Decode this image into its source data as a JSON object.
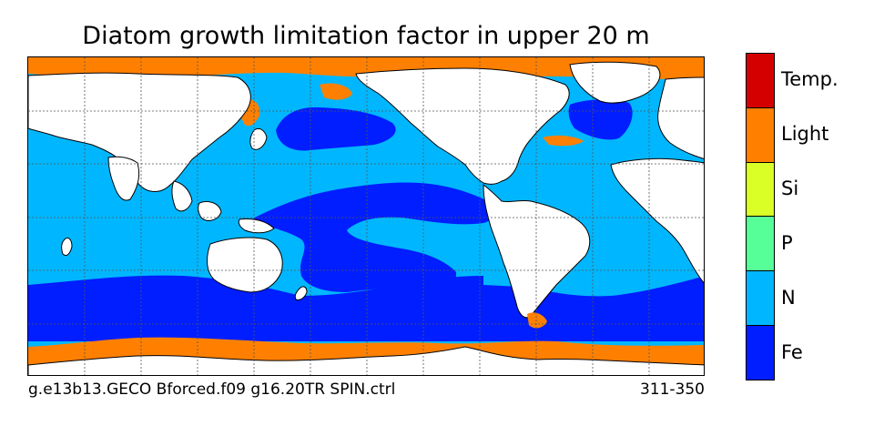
{
  "title": "Diatom growth limitation factor in upper 20 m",
  "footer": {
    "left": "g.e13b13.GECO Bforced.f09 g16.20TR SPIN.ctrl",
    "right": "311-350"
  },
  "legend": {
    "items": [
      {
        "label": "Temp.",
        "color": "#d40000"
      },
      {
        "label": "Light",
        "color": "#ff8000"
      },
      {
        "label": "Si",
        "color": "#d9ff26"
      },
      {
        "label": "P",
        "color": "#57ff98"
      },
      {
        "label": "N",
        "color": "#00b7ff"
      },
      {
        "label": "Fe",
        "color": "#001eff"
      }
    ]
  },
  "colors": {
    "land": "#ffffff",
    "coast": "#000000",
    "grid": "#555555"
  }
}
